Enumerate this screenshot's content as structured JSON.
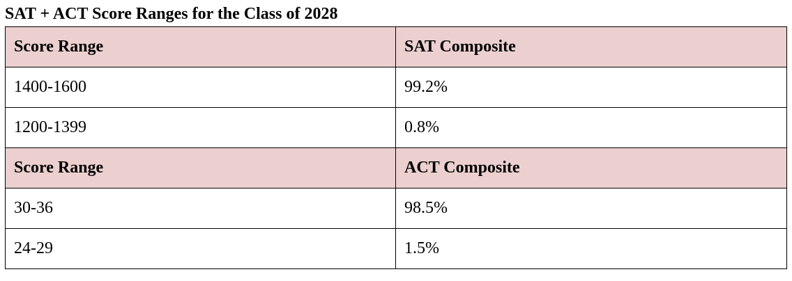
{
  "title": "SAT + ACT Score Ranges for the Class of 2028",
  "table": {
    "sections": [
      {
        "header": [
          "Score Range",
          "SAT Composite"
        ],
        "rows": [
          [
            "1400-1600",
            "99.2%"
          ],
          [
            "1200-1399",
            "0.8%"
          ]
        ]
      },
      {
        "header": [
          "Score Range",
          "ACT Composite"
        ],
        "rows": [
          [
            "30-36",
            "98.5%"
          ],
          [
            "24-29",
            "1.5%"
          ]
        ]
      }
    ]
  }
}
